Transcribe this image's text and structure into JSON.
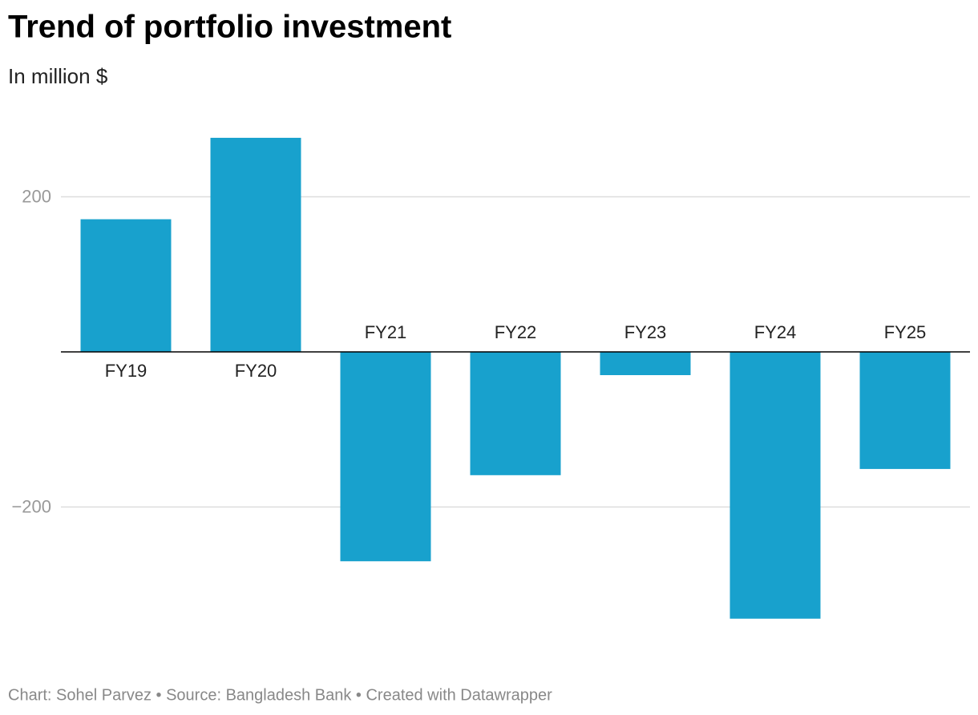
{
  "chart_data": {
    "type": "bar",
    "title": "Trend of portfolio investment",
    "subtitle": "In million $",
    "categories": [
      "FY19",
      "FY20",
      "FY21",
      "FY22",
      "FY23",
      "FY24",
      "FY25"
    ],
    "values": [
      171,
      276,
      -270,
      -159,
      -30,
      -344,
      -151
    ],
    "color": "#18a1cd",
    "ylim": [
      -360,
      300
    ],
    "yticks": [
      {
        "value": -200,
        "label": "−200"
      },
      200
    ],
    "grid": true,
    "source": "Chart: Sohel Parvez • Source: Bangladesh Bank • Created with Datawrapper"
  }
}
